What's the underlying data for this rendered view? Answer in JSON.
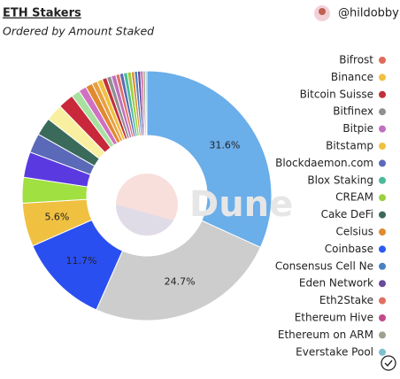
{
  "chart_data": {
    "type": "pie",
    "title": "ETH Stakers",
    "subtitle": "Ordered by Amount Staked",
    "author": "@hildobby",
    "watermark": "Dune",
    "values": [
      31.6,
      24.7,
      11.7,
      5.6,
      3.3,
      3.3,
      2.5,
      2.3,
      2.2,
      2.0,
      1.1,
      1.0,
      0.9,
      0.7,
      0.7,
      0.6,
      0.6,
      0.6,
      0.5,
      0.5,
      0.5,
      0.5,
      0.4,
      0.4,
      0.4,
      0.3,
      0.3,
      0.2
    ],
    "value_labels": [
      "31.6%",
      "24.7%",
      "11.7%",
      "5.6%",
      null,
      null,
      null,
      null,
      null,
      null,
      null,
      null,
      null,
      null,
      null,
      null,
      null,
      null,
      null,
      null,
      null,
      null,
      null,
      null,
      null,
      null,
      null,
      null
    ],
    "colors": [
      "#6aaeea",
      "#cdcdcd",
      "#2a4ff0",
      "#f0c040",
      "#a0e040",
      "#5a3ae0",
      "#5a6ab8",
      "#3a6a5a",
      "#f8f0a0",
      "#c8283a",
      "#a8e0a0",
      "#d070c0",
      "#e08a30",
      "#e8a040",
      "#f0c040",
      "#c0303a",
      "#909090",
      "#c070c0",
      "#e07060",
      "#5a6ab8",
      "#4aba9a",
      "#9ad040",
      "#e08a30",
      "#4a80c0",
      "#6a4a9a",
      "#c04a8a",
      "#a0a090",
      "#80c0d0"
    ],
    "legend": [
      {
        "name": "Bifrost",
        "color": "#e06c5c"
      },
      {
        "name": "Binance",
        "color": "#f0c040"
      },
      {
        "name": "Bitcoin Suisse",
        "color": "#c0303a"
      },
      {
        "name": "Bitfinex",
        "color": "#909090"
      },
      {
        "name": "Bitpie",
        "color": "#c070c0"
      },
      {
        "name": "Bitstamp",
        "color": "#f0c040"
      },
      {
        "name": "Blockdaemon.com",
        "color": "#5a6ab8"
      },
      {
        "name": "Blox Staking",
        "color": "#4aba9a"
      },
      {
        "name": "CREAM",
        "color": "#9ad040"
      },
      {
        "name": "Cake DeFi",
        "color": "#3a6a5a"
      },
      {
        "name": "Celsius",
        "color": "#e08a30"
      },
      {
        "name": "Coinbase",
        "color": "#2a5af0"
      },
      {
        "name": "Consensus Cell Ne",
        "color": "#4a80c0"
      },
      {
        "name": "Eden Network",
        "color": "#6a4a9a"
      },
      {
        "name": "Eth2Stake",
        "color": "#e07060"
      },
      {
        "name": "Ethereum Hive",
        "color": "#c04a8a"
      },
      {
        "name": "Ethereum on ARM",
        "color": "#a0a090"
      },
      {
        "name": "Everstake Pool",
        "color": "#80c0d0"
      }
    ]
  }
}
